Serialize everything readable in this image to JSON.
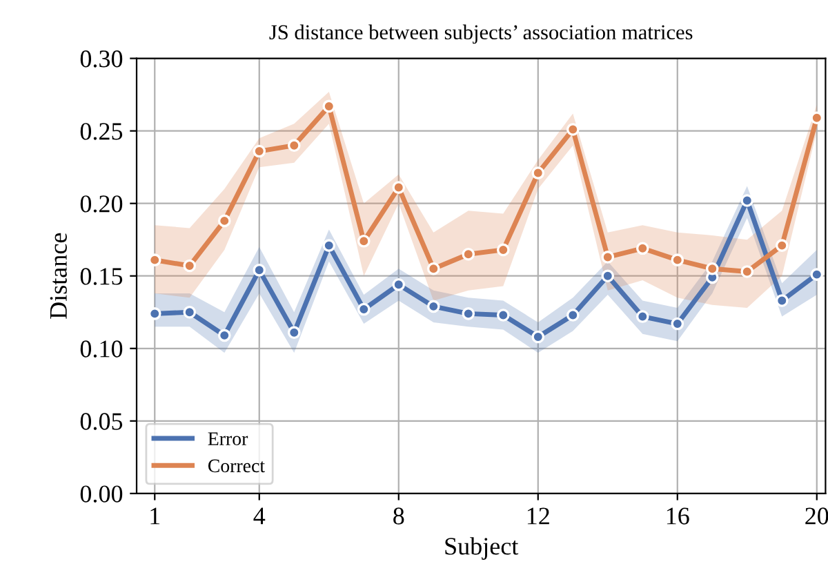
{
  "chart_data": {
    "type": "line",
    "title": "JS distance between subjects’ association matrices",
    "xlabel": "Subject",
    "ylabel": "Distance",
    "x": [
      1,
      2,
      3,
      4,
      5,
      6,
      7,
      8,
      9,
      10,
      11,
      12,
      13,
      14,
      15,
      16,
      17,
      18,
      19,
      20
    ],
    "series": [
      {
        "name": "Error",
        "color": "#4c72b0",
        "values": [
          0.124,
          0.125,
          0.109,
          0.154,
          0.111,
          0.171,
          0.127,
          0.144,
          0.129,
          0.124,
          0.123,
          0.108,
          0.123,
          0.15,
          0.122,
          0.117,
          0.149,
          0.202,
          0.133,
          0.151
        ],
        "lower": [
          0.115,
          0.115,
          0.097,
          0.138,
          0.097,
          0.16,
          0.117,
          0.133,
          0.118,
          0.115,
          0.113,
          0.097,
          0.112,
          0.137,
          0.11,
          0.105,
          0.138,
          0.19,
          0.122,
          0.137
        ],
        "upper": [
          0.138,
          0.138,
          0.125,
          0.17,
          0.125,
          0.182,
          0.137,
          0.155,
          0.14,
          0.135,
          0.133,
          0.118,
          0.135,
          0.16,
          0.133,
          0.128,
          0.16,
          0.212,
          0.145,
          0.168
        ]
      },
      {
        "name": "Correct",
        "color": "#dd8452",
        "values": [
          0.161,
          0.157,
          0.188,
          0.236,
          0.24,
          0.267,
          0.174,
          0.211,
          0.155,
          0.165,
          0.168,
          0.221,
          0.251,
          0.163,
          0.169,
          0.161,
          0.155,
          0.153,
          0.171,
          0.259
        ],
        "lower": [
          0.138,
          0.135,
          0.168,
          0.225,
          0.228,
          0.255,
          0.15,
          0.2,
          0.133,
          0.14,
          0.143,
          0.21,
          0.24,
          0.14,
          0.147,
          0.135,
          0.13,
          0.128,
          0.15,
          0.25
        ],
        "upper": [
          0.185,
          0.183,
          0.21,
          0.245,
          0.255,
          0.277,
          0.2,
          0.22,
          0.18,
          0.195,
          0.193,
          0.23,
          0.262,
          0.18,
          0.185,
          0.18,
          0.178,
          0.175,
          0.195,
          0.268
        ]
      }
    ],
    "xlim": [
      0.48,
      20.25
    ],
    "xticks": [
      1,
      4,
      8,
      12,
      16,
      20
    ],
    "ylim": [
      0,
      0.3
    ],
    "yticks": [
      {
        "value": 0,
        "label": "0.00"
      },
      {
        "value": 0.05,
        "label": "0.05"
      },
      {
        "value": 0.1,
        "label": "0.10"
      },
      {
        "value": 0.15,
        "label": "0.15"
      },
      {
        "value": 0.2,
        "label": "0.20"
      },
      {
        "value": 0.25,
        "label": "0.25"
      },
      {
        "value": 0.3,
        "label": "0.30"
      }
    ],
    "grid": true,
    "legend": "bottom left",
    "marker": "circle",
    "line_style": "solid"
  }
}
